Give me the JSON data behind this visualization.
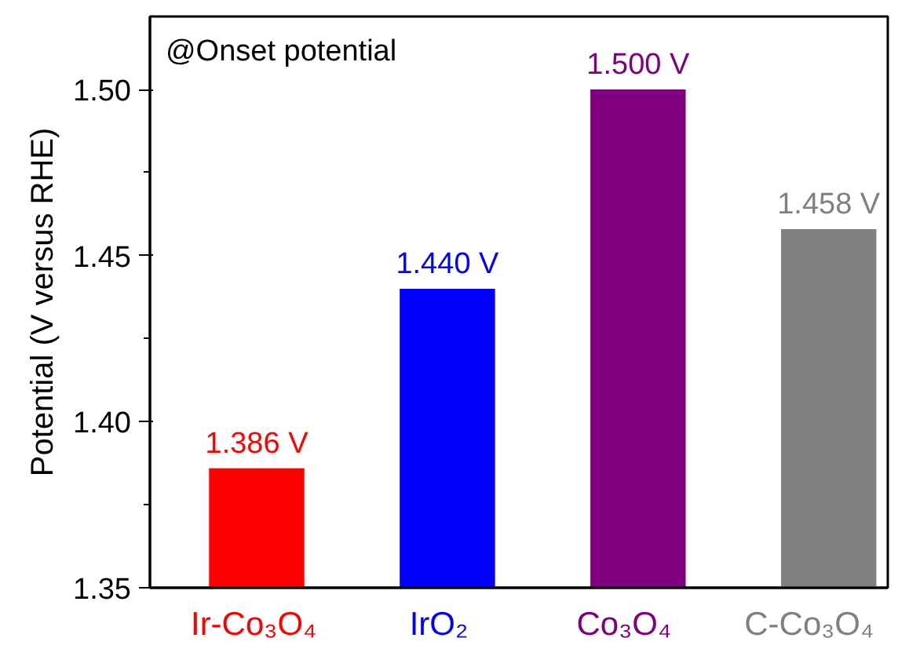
{
  "chart_data": {
    "type": "bar",
    "ylabel": "Potential (V versus RHE)",
    "annotations": [
      "@Onset potential"
    ],
    "categories": [
      "Ir-Co₃O₄",
      "IrO₂",
      "Co₃O₄",
      "C-Co₃O₄"
    ],
    "values": [
      1.386,
      1.44,
      1.5,
      1.458
    ],
    "colors": [
      "#ff0000",
      "#0000ff",
      "#800080",
      "#808080"
    ],
    "value_labels": [
      "1.386 V",
      "1.440 V",
      "1.500 V",
      "1.458 V"
    ],
    "ylim": [
      1.35,
      1.522
    ],
    "yticks": [
      1.35,
      {
        "value": 1.4,
        "label": "1.40"
      },
      1.45,
      {
        "value": 1.5,
        "label": "1.50"
      }
    ],
    "grid": false
  }
}
